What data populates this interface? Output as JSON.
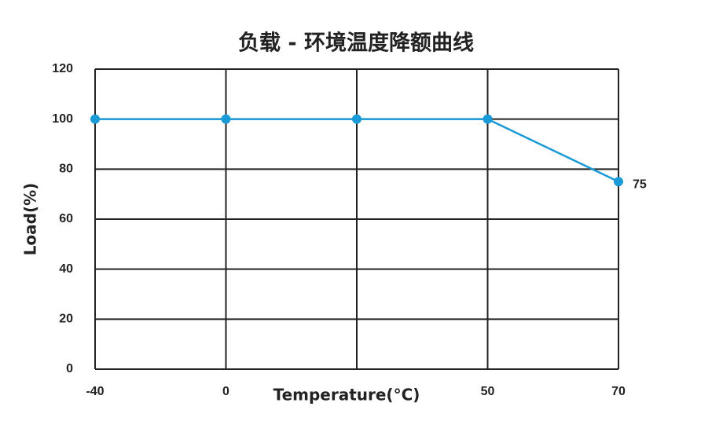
{
  "chart_data": {
    "type": "line",
    "title": "负载 - 环境温度降额曲线",
    "x_label": "Temperature(°C)",
    "y_label": "Load(%)",
    "categories": [
      "-40",
      "0",
      null,
      "50",
      "70"
    ],
    "values": [
      100,
      100,
      100,
      100,
      75
    ],
    "color": "#1a9ad6",
    "ylim": [
      0,
      120
    ],
    "yticks": [
      0,
      20,
      40,
      60,
      80,
      100,
      120
    ],
    "grid": true
  }
}
